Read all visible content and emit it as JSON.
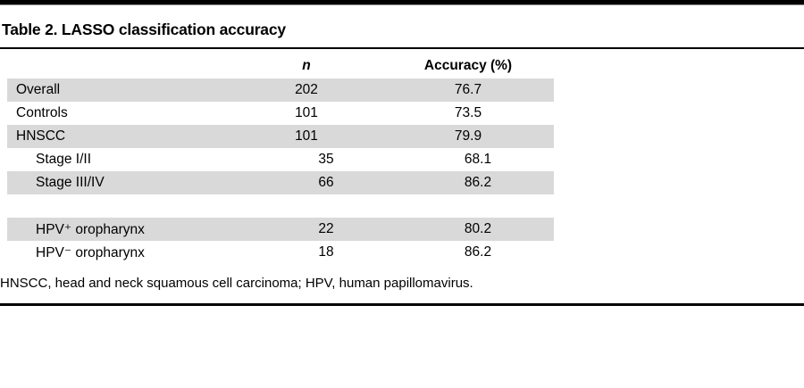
{
  "title": "Table 2. LASSO classification accuracy",
  "table": {
    "header": {
      "n": "n",
      "accuracy": "Accuracy (%)"
    },
    "rows": [
      {
        "label": "Overall",
        "n": "202",
        "accuracy": "76.7"
      },
      {
        "label": "Controls",
        "n": "101",
        "accuracy": "73.5"
      },
      {
        "label": "HNSCC",
        "n": "101",
        "accuracy": "79.9"
      },
      {
        "label": "Stage I/II",
        "n": "35",
        "accuracy": "68.1"
      },
      {
        "label": "Stage III/IV",
        "n": "66",
        "accuracy": "86.2"
      },
      {
        "label": "HPV⁺ oropharynx",
        "n": "22",
        "accuracy": "80.2"
      },
      {
        "label": "HPV⁻ oropharynx",
        "n": "18",
        "accuracy": "86.2"
      }
    ]
  },
  "footnote": "HNSCC, head and neck squamous cell carcinoma; HPV, human papillomavirus.",
  "colors": {
    "row_shade": "#d9d9d9",
    "rule": "#000000",
    "text": "#000000"
  }
}
